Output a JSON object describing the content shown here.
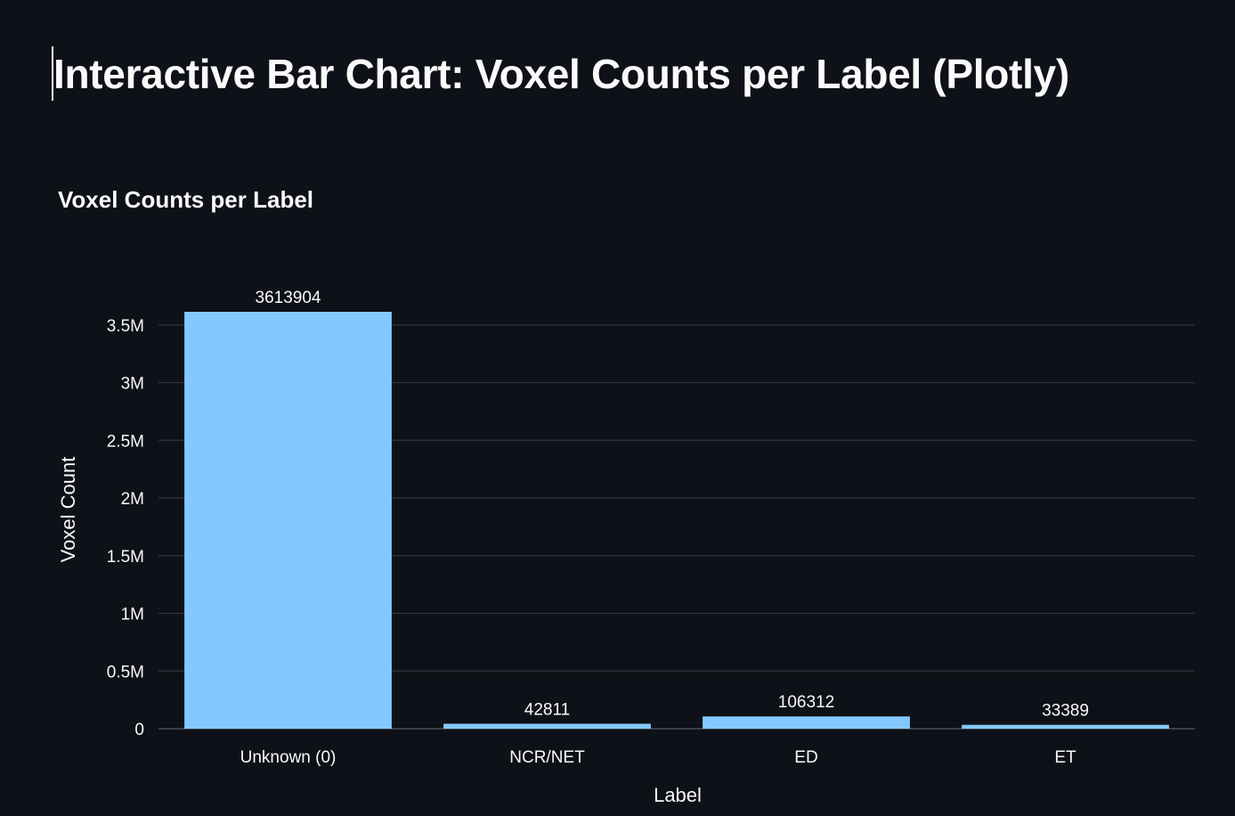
{
  "page": {
    "title": "Interactive Bar Chart: Voxel Counts per Label (Plotly)"
  },
  "colors": {
    "background": "#0e1117",
    "bar": "#83c9ff",
    "text": "#fafafa",
    "grid": "#31333f"
  },
  "chart_data": {
    "type": "bar",
    "title": "Voxel Counts per Label",
    "xlabel": "Label",
    "ylabel": "Voxel Count",
    "categories": [
      "Unknown (0)",
      "NCR/NET",
      "ED",
      "ET"
    ],
    "values": [
      3613904,
      42811,
      106312,
      33389
    ],
    "data_labels": [
      "3613904",
      "42811",
      "106312",
      "33389"
    ],
    "ylim": [
      0,
      3613904
    ],
    "yticks": [
      0,
      500000,
      1000000,
      1500000,
      2000000,
      2500000,
      3000000,
      3500000
    ],
    "ytick_labels": [
      "0",
      "0.5M",
      "1M",
      "1.5M",
      "2M",
      "2.5M",
      "3M",
      "3.5M"
    ],
    "grid": true,
    "legend": "none"
  }
}
